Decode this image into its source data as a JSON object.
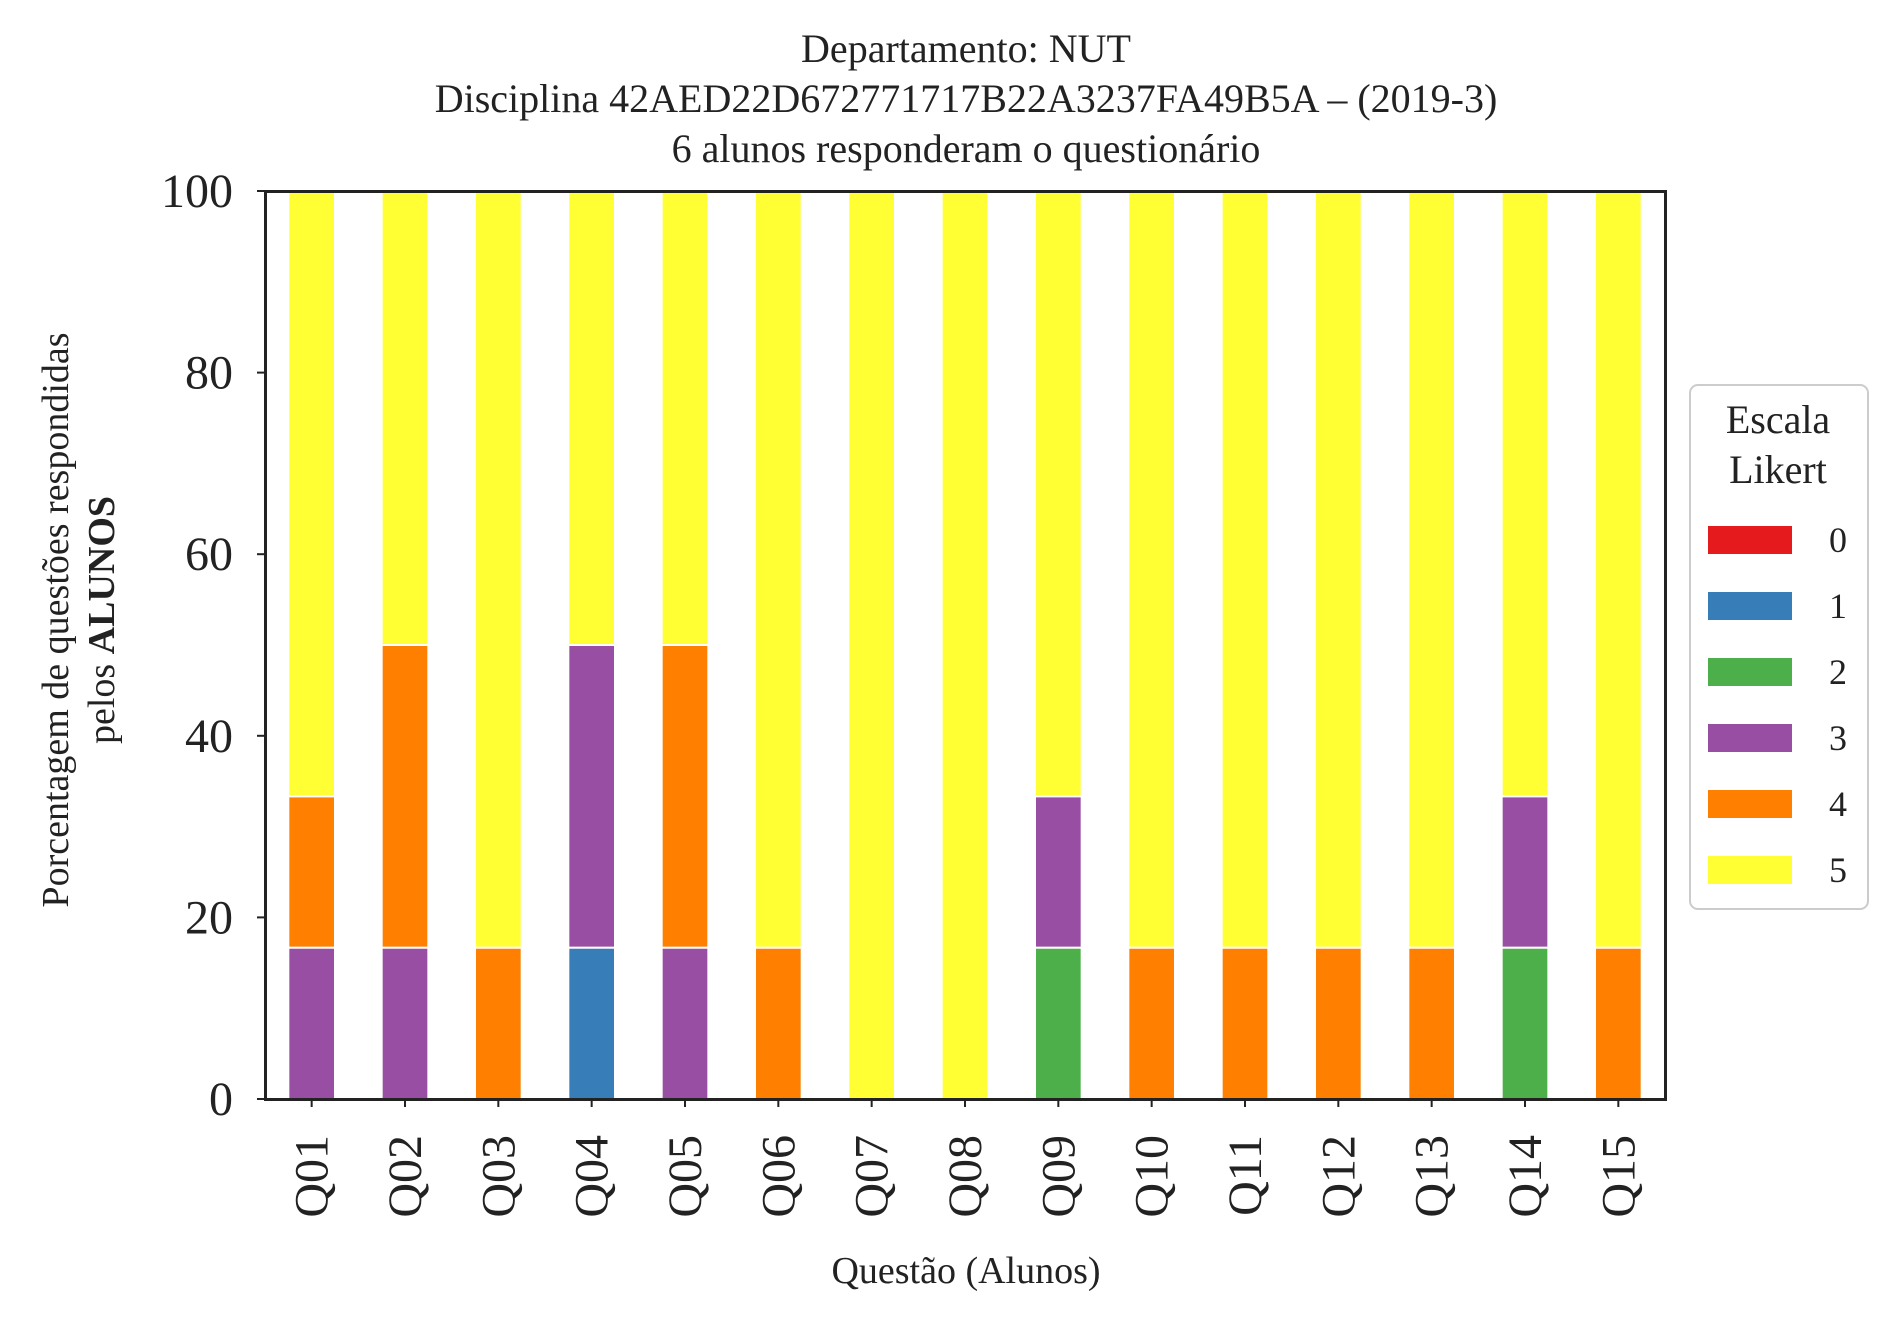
{
  "chart_data": {
    "type": "bar",
    "stacked": true,
    "title_lines": [
      "Departamento: NUT",
      "Disciplina 42AED22D672771717B22A3237FA49B5A – (2019-3)",
      "6 alunos responderam o questionário"
    ],
    "xlabel": "Questão (Alunos)",
    "ylabel_line1": "Porcentagem de questões respondidas",
    "ylabel_line2_prefix": "pelos ",
    "ylabel_line2_bold": "ALUNOS",
    "ylim": [
      0,
      100
    ],
    "yticks": [
      "0",
      "20",
      "40",
      "60",
      "80",
      "100"
    ],
    "grid": false,
    "categories": [
      "Q01",
      "Q02",
      "Q03",
      "Q04",
      "Q05",
      "Q06",
      "Q07",
      "Q08",
      "Q09",
      "Q10",
      "Q11",
      "Q12",
      "Q13",
      "Q14",
      "Q15"
    ],
    "legend": {
      "title_line1": "Escala",
      "title_line2": "Likert",
      "placement": "right"
    },
    "series": [
      {
        "name": "0",
        "color": "#e41a1c",
        "values": [
          0,
          0,
          0,
          0,
          0,
          0,
          0,
          0,
          0,
          0,
          0,
          0,
          0,
          0,
          0
        ]
      },
      {
        "name": "1",
        "color": "#377eb8",
        "values": [
          0,
          0,
          0,
          16.67,
          0,
          0,
          0,
          0,
          0,
          0,
          0,
          0,
          0,
          0,
          0
        ]
      },
      {
        "name": "2",
        "color": "#4daf4a",
        "values": [
          0,
          0,
          0,
          0,
          0,
          0,
          0,
          0,
          16.67,
          0,
          0,
          0,
          0,
          16.67,
          0
        ]
      },
      {
        "name": "3",
        "color": "#984ea3",
        "values": [
          16.67,
          16.67,
          0,
          33.33,
          16.67,
          0,
          0,
          0,
          16.67,
          0,
          0,
          0,
          0,
          16.67,
          0
        ]
      },
      {
        "name": "4",
        "color": "#ff7f00",
        "values": [
          16.67,
          33.33,
          16.67,
          0,
          33.33,
          16.67,
          0,
          0,
          0,
          16.67,
          16.67,
          16.67,
          16.67,
          0,
          16.67
        ]
      },
      {
        "name": "5",
        "color": "#ffff33",
        "values": [
          66.67,
          50,
          83.33,
          50,
          50,
          83.33,
          100,
          100,
          66.67,
          83.33,
          83.33,
          83.33,
          83.33,
          66.67,
          83.33
        ]
      }
    ]
  }
}
